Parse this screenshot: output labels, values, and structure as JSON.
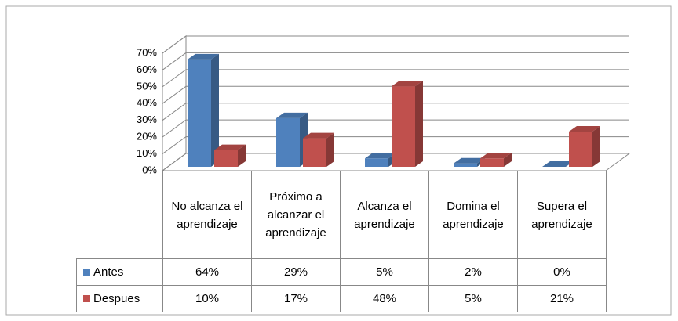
{
  "chart_data": {
    "type": "bar3d",
    "categories": [
      "No alcanza el aprendizaje",
      "Próximo a alcanzar el aprendizaje",
      "Alcanza el aprendizaje",
      "Domina el aprendizaje",
      "Supera el aprendizaje"
    ],
    "series": [
      {
        "name": "Antes",
        "color": "#4f81bd",
        "values": [
          64,
          29,
          5,
          2,
          0
        ],
        "value_labels": [
          "64%",
          "29%",
          "5%",
          "2%",
          "0%"
        ]
      },
      {
        "name": "Despues",
        "color": "#c0504d",
        "values": [
          10,
          17,
          48,
          5,
          21
        ],
        "value_labels": [
          "10%",
          "17%",
          "48%",
          "5%",
          "21%"
        ]
      }
    ],
    "ylim": [
      0,
      70
    ],
    "yticks": [
      {
        "value": 0,
        "label": "0%"
      },
      {
        "value": 10,
        "label": "10%"
      },
      {
        "value": 20,
        "label": "20%"
      },
      {
        "value": 30,
        "label": "30%"
      },
      {
        "value": 40,
        "label": "40%"
      },
      {
        "value": 50,
        "label": "50%"
      },
      {
        "value": 60,
        "label": "60%"
      },
      {
        "value": 70,
        "label": "70%"
      }
    ],
    "grid": true
  }
}
